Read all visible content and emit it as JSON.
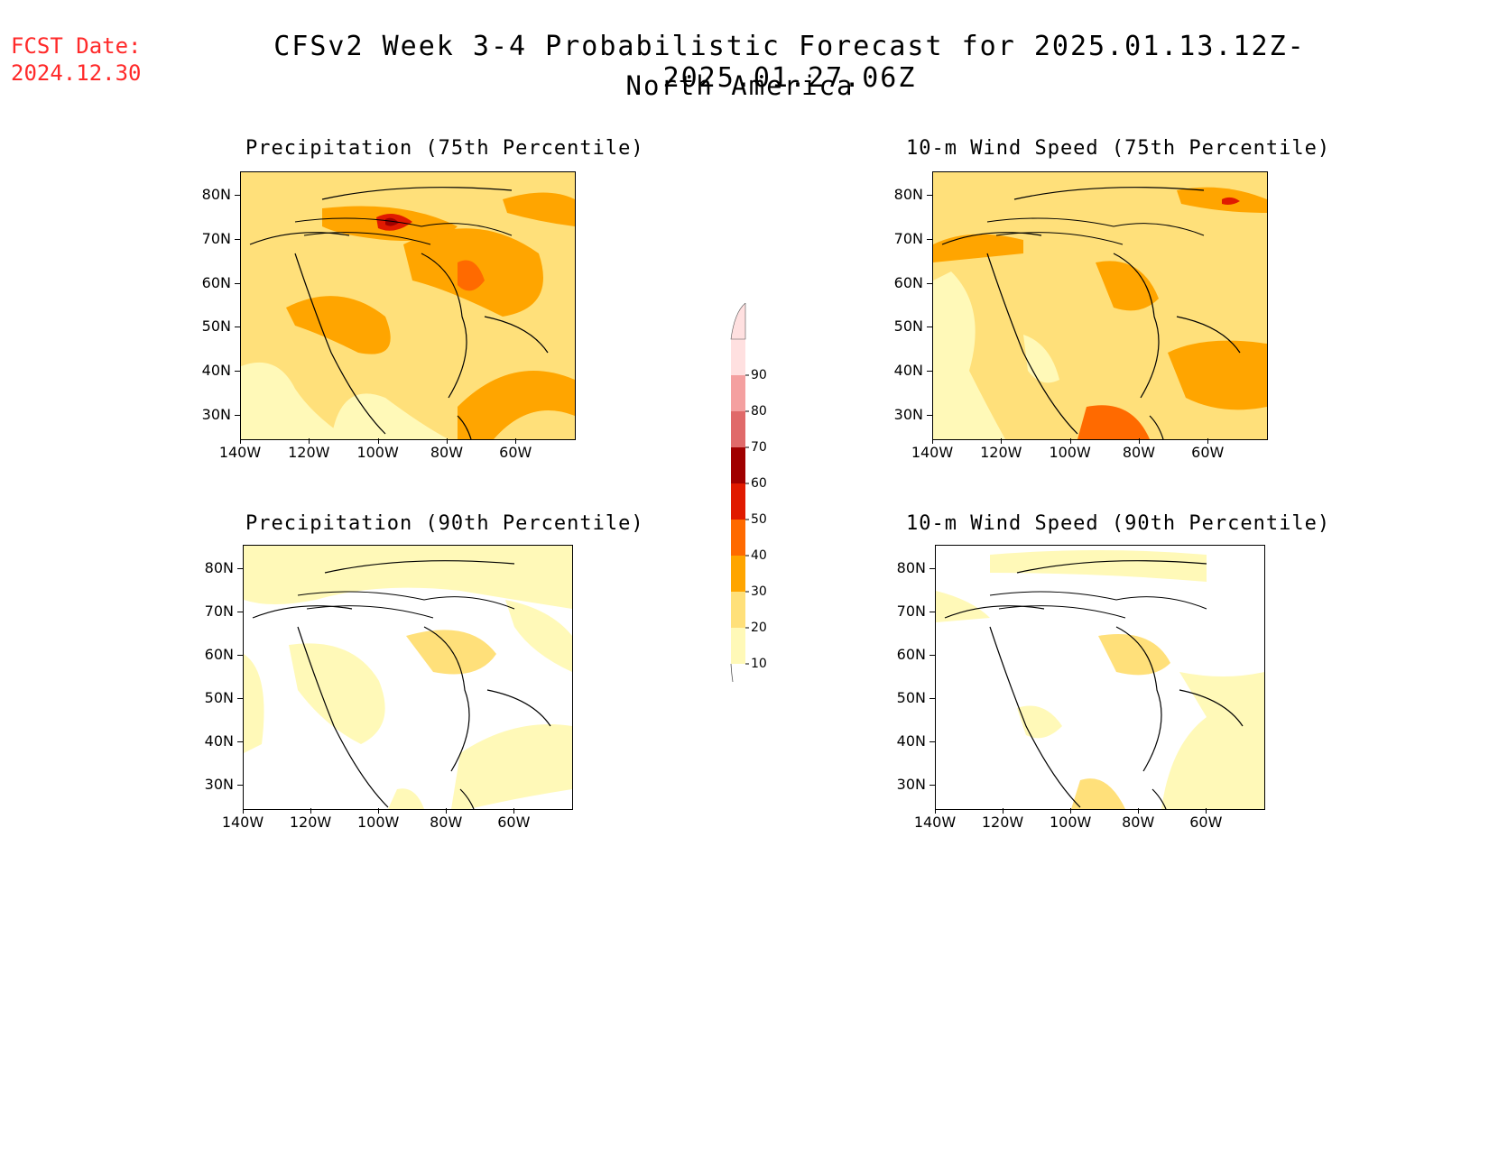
{
  "header": {
    "fcst_label": "FCST Date:",
    "fcst_date": "2024.12.30",
    "title": "CFSv2 Week 3-4 Probabilistic Forecast for 2025.01.13.12Z-2025.01.27.06Z",
    "subtitle": "North America"
  },
  "panels": [
    {
      "id": "precip75",
      "title": "Precipitation (75th Percentile)"
    },
    {
      "id": "wind75",
      "title": "10-m Wind Speed (75th Percentile)"
    },
    {
      "id": "precip90",
      "title": "Precipitation (90th Percentile)"
    },
    {
      "id": "wind90",
      "title": "10-m Wind Speed (90th Percentile)"
    }
  ],
  "axes": {
    "lat_labels": [
      "80N",
      "70N",
      "60N",
      "50N",
      "40N",
      "30N"
    ],
    "lon_labels": [
      "140W",
      "120W",
      "100W",
      "80W",
      "60W"
    ]
  },
  "colorbar": {
    "levels": [
      "10",
      "20",
      "30",
      "40",
      "50",
      "60",
      "70",
      "80",
      "90"
    ],
    "colors": [
      "#fff9b8",
      "#ffe07a",
      "#ffa500",
      "#ff6a00",
      "#e01a00",
      "#a00000",
      "#e06a6a",
      "#f4a0a0",
      "#ffe0e0"
    ]
  }
}
